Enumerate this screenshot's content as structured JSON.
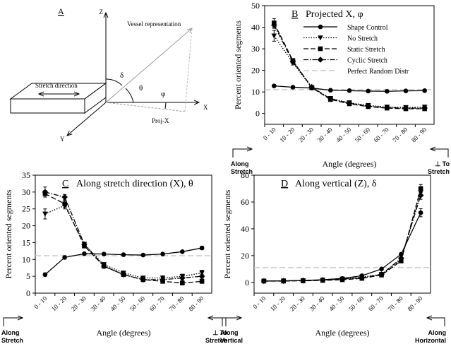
{
  "diagram": {
    "panel": "A",
    "z_axis": "Z",
    "x_axis": "X",
    "y_axis": "Y",
    "vessel": "Vessel representation",
    "projection": "Proj-X",
    "stretch": "Stretch direction",
    "delta": "δ",
    "theta": "θ",
    "phi": "φ"
  },
  "chart_data": [
    {
      "type": "line",
      "panel": "B",
      "title": "Projected X, φ",
      "xlabel": "Angle (degrees)",
      "ylabel": "Percent oriented segments",
      "categories": [
        "0 - 10",
        "10 - 20",
        "20 - 30",
        "30 - 40",
        "40 - 50",
        "50 - 60",
        "60 - 70",
        "70 - 80",
        "80 - 90"
      ],
      "ylim": [
        -5,
        50
      ],
      "yticks": [
        0,
        10,
        20,
        30,
        40,
        50
      ],
      "legend": "upper right",
      "left_note": [
        "Along",
        "Stretch"
      ],
      "right_note": [
        "⊥ To",
        "Stretch"
      ],
      "series": [
        {
          "name": "Shape Control",
          "color": "#000000",
          "marker": "circle",
          "line_style": "solid",
          "values": [
            12.8,
            12.2,
            11.8,
            10.8,
            10.6,
            10.4,
            10.3,
            10.5,
            10.6
          ],
          "errors": [
            0.5,
            0.4,
            0.4,
            0.3,
            0.3,
            0.3,
            0.3,
            0.3,
            0.3
          ]
        },
        {
          "name": "No Stretch",
          "color": "#000000",
          "marker": "triangle",
          "line_style": "dotted",
          "values": [
            36,
            23.5,
            12,
            7,
            5,
            3.8,
            3,
            2.8,
            3
          ],
          "errors": [
            2.5,
            1,
            0.6,
            0.5,
            0.4,
            0.4,
            0.4,
            0.4,
            0.4
          ]
        },
        {
          "name": "Static Stretch",
          "color": "#000000",
          "marker": "square",
          "line_style": "dashed",
          "values": [
            42,
            24.5,
            12,
            6.5,
            4.5,
            3.2,
            2.5,
            2.2,
            2.2
          ],
          "errors": [
            2,
            1,
            0.6,
            0.5,
            0.4,
            0.4,
            0.4,
            0.4,
            0.4
          ]
        },
        {
          "name": "Cyclic Stretch",
          "color": "#000000",
          "marker": "diamond",
          "line_style": "dashdot",
          "values": [
            41,
            24,
            12.3,
            6.8,
            4.8,
            3.4,
            2.8,
            2.5,
            2.5
          ],
          "errors": [
            1.5,
            1,
            0.6,
            0.5,
            0.4,
            0.4,
            0.4,
            0.4,
            0.4
          ]
        }
      ],
      "reference": {
        "name": "Perfect Random Distr",
        "value": 11.1,
        "color": "#cccccc"
      }
    },
    {
      "type": "line",
      "panel": "C",
      "title": "Along stretch direction (X), θ",
      "xlabel": "Angle (degrees)",
      "ylabel": "Percent oriented segments",
      "categories": [
        "0 - 10",
        "10 - 20",
        "20 - 30",
        "30 - 40",
        "40 - 50",
        "50 - 60",
        "60 - 70",
        "70 - 80",
        "80 - 90"
      ],
      "ylim": [
        0,
        35
      ],
      "yticks": [
        0,
        5,
        10,
        15,
        20,
        25,
        30,
        35
      ],
      "legend": false,
      "left_note": [
        "Along",
        "Stretch"
      ],
      "right_note": [
        "⊥ To",
        "Stretch"
      ],
      "series": [
        {
          "name": "Shape Control",
          "color": "#000000",
          "marker": "circle",
          "line_style": "solid",
          "values": [
            5.5,
            10.6,
            11.7,
            11.6,
            11.4,
            11.3,
            11.6,
            12.3,
            13.4
          ],
          "errors": [
            0.5,
            0.5,
            0.4,
            0.4,
            0.3,
            0.3,
            0.4,
            0.4,
            0.5
          ]
        },
        {
          "name": "No Stretch",
          "color": "#000000",
          "marker": "triangle",
          "line_style": "dotted",
          "values": [
            23.5,
            26,
            14.5,
            8.5,
            6,
            4.5,
            4.5,
            5,
            6
          ],
          "errors": [
            1.5,
            1,
            0.6,
            0.5,
            0.5,
            0.5,
            0.6,
            0.6,
            0.8
          ]
        },
        {
          "name": "Static Stretch",
          "color": "#000000",
          "marker": "square",
          "line_style": "dashed",
          "values": [
            29.5,
            26.5,
            14,
            8,
            5.5,
            4,
            3.5,
            3,
            3.5
          ],
          "errors": [
            1,
            1,
            0.6,
            0.5,
            0.5,
            0.5,
            0.5,
            0.6,
            0.6
          ]
        },
        {
          "name": "Cyclic Stretch",
          "color": "#000000",
          "marker": "diamond",
          "line_style": "dashdot",
          "values": [
            30,
            28.5,
            14.5,
            8,
            5.5,
            4,
            4,
            4.5,
            5
          ],
          "errors": [
            1.5,
            0.8,
            0.6,
            0.5,
            0.5,
            0.5,
            0.5,
            0.6,
            0.6
          ]
        }
      ],
      "reference": {
        "name": "Perfect Random Distr",
        "value": 11.1,
        "color": "#cccccc"
      }
    },
    {
      "type": "line",
      "panel": "D",
      "title": "Along vertical (Z), δ",
      "xlabel": "Angle (degrees)",
      "ylabel": "Percent oriented segments",
      "categories": [
        "0 - 10",
        "10 - 20",
        "20 - 30",
        "30 - 40",
        "40 - 50",
        "50 - 60",
        "60 - 70",
        "70 - 80",
        "80 - 90"
      ],
      "ylim": [
        -8,
        80
      ],
      "yticks": [
        0,
        20,
        40,
        60,
        80
      ],
      "legend": false,
      "left_note": [
        "Along",
        "Vertical"
      ],
      "right_note": [
        "Along",
        "Horizontal"
      ],
      "series": [
        {
          "name": "Shape Control",
          "color": "#000000",
          "marker": "circle",
          "line_style": "solid",
          "values": [
            1,
            1.2,
            1.5,
            2,
            3,
            5,
            10,
            21,
            52
          ],
          "errors": [
            0.3,
            0.3,
            0.3,
            0.3,
            0.4,
            0.5,
            0.8,
            1,
            3
          ]
        },
        {
          "name": "No Stretch",
          "color": "#000000",
          "marker": "triangle",
          "line_style": "dotted",
          "values": [
            1,
            1.2,
            1.3,
            1.8,
            2.5,
            4,
            6,
            17,
            67
          ],
          "errors": [
            0.3,
            0.3,
            0.3,
            0.3,
            0.4,
            0.5,
            0.8,
            1,
            3
          ]
        },
        {
          "name": "Static Stretch",
          "color": "#000000",
          "marker": "square",
          "line_style": "dashed",
          "values": [
            1,
            1,
            1.2,
            1.5,
            2,
            3,
            5.5,
            16,
            70
          ],
          "errors": [
            0.3,
            0.3,
            0.3,
            0.3,
            0.4,
            0.5,
            0.8,
            1,
            3
          ]
        },
        {
          "name": "Cyclic Stretch",
          "color": "#000000",
          "marker": "diamond",
          "line_style": "dashdot",
          "values": [
            1,
            1.1,
            1.4,
            1.8,
            2.5,
            3.5,
            6,
            18,
            65
          ],
          "errors": [
            0.3,
            0.3,
            0.3,
            0.3,
            0.4,
            0.5,
            0.8,
            1,
            3
          ]
        }
      ],
      "reference": {
        "name": "Perfect Random Distr",
        "value": 11.1,
        "color": "#cccccc"
      }
    }
  ]
}
